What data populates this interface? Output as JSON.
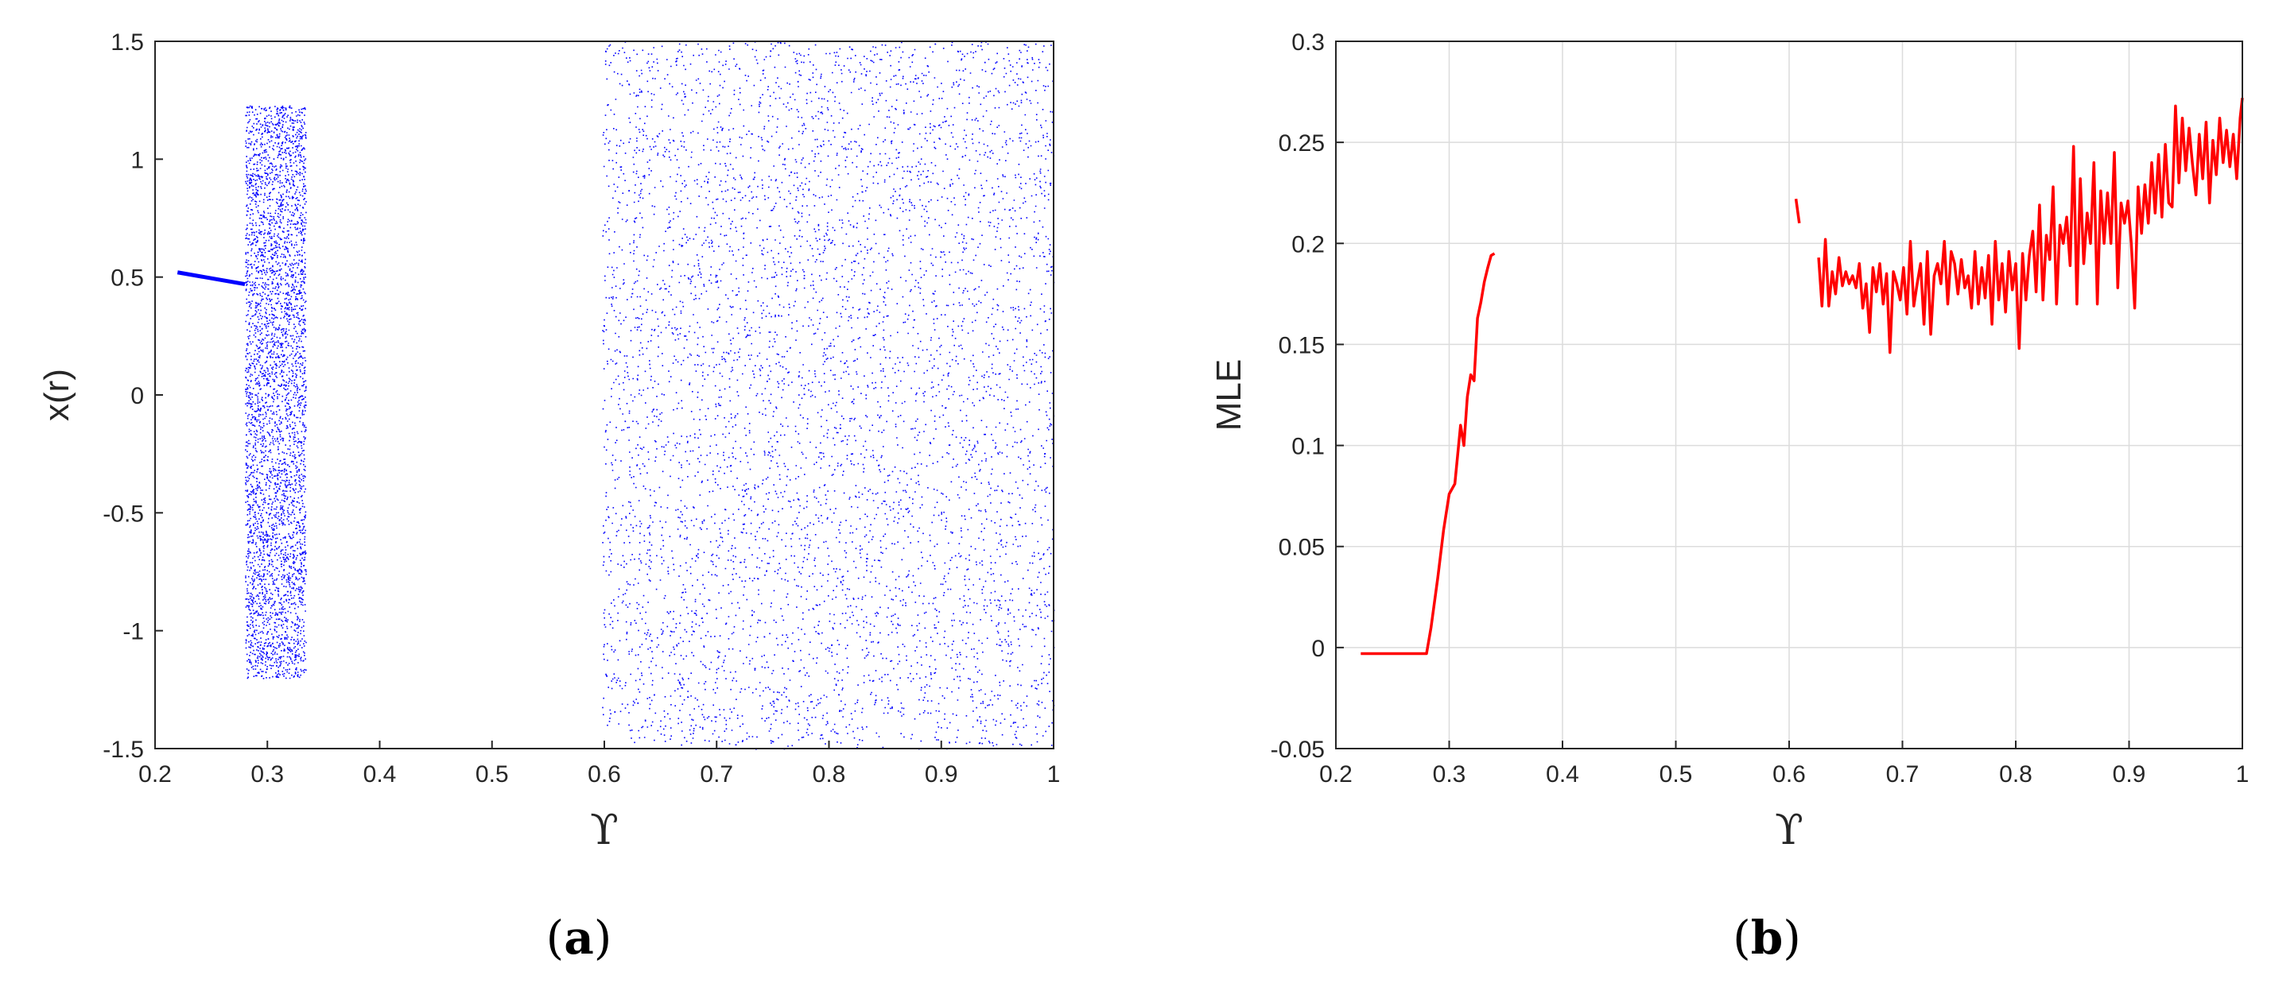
{
  "colors": {
    "scatter": "#0000ff",
    "line": "#ff0000",
    "axis": "#262626",
    "grid": "#dcdcdc"
  },
  "chart_data": [
    {
      "type": "scatter",
      "panel_label": "(a)",
      "caption_open": "(",
      "caption_letter": "a",
      "caption_close": ")",
      "xlabel": "ϒ",
      "ylabel": "x(r)",
      "xlim": [
        0.2,
        1
      ],
      "ylim": [
        -1.5,
        1.5
      ],
      "grid": false,
      "x_ticks": [
        "0.2",
        "0.3",
        "0.4",
        "0.5",
        "0.6",
        "0.7",
        "0.8",
        "0.9",
        "1"
      ],
      "y_ticks": [
        "-1.5",
        "-1",
        "-0.5",
        "0",
        "0.5",
        "1",
        "1.5"
      ],
      "periodic_branch": {
        "x": [
          0.22,
          0.28
        ],
        "y": [
          0.52,
          0.47
        ]
      },
      "bands": [
        {
          "x": [
            0.28,
            0.334
          ],
          "ymin": -1.2,
          "ymax": 1.23,
          "density": "dense"
        },
        {
          "x": [
            0.598,
            0.622
          ],
          "ymin": -1.4,
          "ymax": 1.5,
          "density": "sparse"
        },
        {
          "x": [
            0.622,
            1.0
          ],
          "ymin": -1.5,
          "ymax": 1.5,
          "density": "dense"
        }
      ]
    },
    {
      "type": "line",
      "panel_label": "(b)",
      "caption_open": "(",
      "caption_letter": "b",
      "caption_close": ")",
      "xlabel": "ϒ",
      "ylabel": "MLE",
      "xlim": [
        0.2,
        1
      ],
      "ylim": [
        -0.05,
        0.3
      ],
      "grid": true,
      "x_ticks": [
        "0.2",
        "0.3",
        "0.4",
        "0.5",
        "0.6",
        "0.7",
        "0.8",
        "0.9",
        "1"
      ],
      "y_ticks": [
        "-0.05",
        "0",
        "0.05",
        "0.1",
        "0.15",
        "0.2",
        "0.25",
        "0.3"
      ],
      "segments": [
        {
          "x": [
            0.222,
            0.23,
            0.24,
            0.25,
            0.26,
            0.27,
            0.28,
            0.284,
            0.29,
            0.295,
            0.3,
            0.305,
            0.31,
            0.313,
            0.316,
            0.319,
            0.322,
            0.325,
            0.328,
            0.331,
            0.334,
            0.337,
            0.34
          ],
          "y": [
            -0.003,
            -0.003,
            -0.003,
            -0.003,
            -0.003,
            -0.003,
            -0.003,
            0.01,
            0.035,
            0.058,
            0.076,
            0.081,
            0.11,
            0.1,
            0.124,
            0.135,
            0.132,
            0.163,
            0.171,
            0.181,
            0.188,
            0.194,
            0.195
          ]
        },
        {
          "x": [
            0.606,
            0.609
          ],
          "y": [
            0.222,
            0.21
          ]
        },
        {
          "x": [
            0.626,
            0.629,
            0.632,
            0.635,
            0.638,
            0.641,
            0.644,
            0.647,
            0.65,
            0.653,
            0.656,
            0.659,
            0.662,
            0.665,
            0.668,
            0.671,
            0.674,
            0.677,
            0.68,
            0.683,
            0.686,
            0.689,
            0.692,
            0.695,
            0.698,
            0.701,
            0.704,
            0.707,
            0.71,
            0.713,
            0.716,
            0.719,
            0.722,
            0.725,
            0.728,
            0.731,
            0.734,
            0.737,
            0.74,
            0.743,
            0.746,
            0.749,
            0.752,
            0.755,
            0.758,
            0.761,
            0.764,
            0.767,
            0.77,
            0.773,
            0.776,
            0.779,
            0.782,
            0.785,
            0.788,
            0.791,
            0.794,
            0.797,
            0.8,
            0.803,
            0.806,
            0.809,
            0.812,
            0.815,
            0.818,
            0.821,
            0.824,
            0.827,
            0.83,
            0.833,
            0.836,
            0.839,
            0.842,
            0.845,
            0.848,
            0.851,
            0.854,
            0.857,
            0.86,
            0.863,
            0.866,
            0.869,
            0.872,
            0.875,
            0.878,
            0.881,
            0.884,
            0.887,
            0.89,
            0.893,
            0.896,
            0.899,
            0.902,
            0.905,
            0.908,
            0.911,
            0.914,
            0.917,
            0.92,
            0.923,
            0.926,
            0.929,
            0.932,
            0.935,
            0.938,
            0.941,
            0.944,
            0.947,
            0.95,
            0.953,
            0.956,
            0.959,
            0.962,
            0.965,
            0.968,
            0.971,
            0.974,
            0.977,
            0.98,
            0.983,
            0.986,
            0.989,
            0.992,
            0.995,
            0.998,
            1.0
          ],
          "y": [
            0.193,
            0.169,
            0.202,
            0.169,
            0.186,
            0.175,
            0.193,
            0.179,
            0.186,
            0.18,
            0.184,
            0.178,
            0.19,
            0.168,
            0.18,
            0.156,
            0.188,
            0.176,
            0.19,
            0.17,
            0.185,
            0.146,
            0.186,
            0.18,
            0.172,
            0.188,
            0.165,
            0.201,
            0.169,
            0.18,
            0.19,
            0.16,
            0.196,
            0.155,
            0.184,
            0.19,
            0.18,
            0.201,
            0.17,
            0.196,
            0.19,
            0.175,
            0.192,
            0.178,
            0.184,
            0.168,
            0.196,
            0.17,
            0.188,
            0.173,
            0.194,
            0.16,
            0.201,
            0.172,
            0.19,
            0.166,
            0.196,
            0.177,
            0.19,
            0.148,
            0.195,
            0.172,
            0.194,
            0.206,
            0.176,
            0.219,
            0.172,
            0.204,
            0.192,
            0.228,
            0.17,
            0.209,
            0.2,
            0.213,
            0.189,
            0.248,
            0.17,
            0.232,
            0.19,
            0.215,
            0.2,
            0.24,
            0.17,
            0.226,
            0.2,
            0.225,
            0.2,
            0.245,
            0.178,
            0.22,
            0.21,
            0.221,
            0.2,
            0.168,
            0.228,
            0.205,
            0.229,
            0.21,
            0.24,
            0.215,
            0.244,
            0.213,
            0.249,
            0.22,
            0.218,
            0.268,
            0.23,
            0.262,
            0.236,
            0.257,
            0.239,
            0.224,
            0.254,
            0.232,
            0.26,
            0.22,
            0.251,
            0.234,
            0.262,
            0.24,
            0.256,
            0.238,
            0.254,
            0.232,
            0.262,
            0.272
          ]
        }
      ]
    }
  ]
}
